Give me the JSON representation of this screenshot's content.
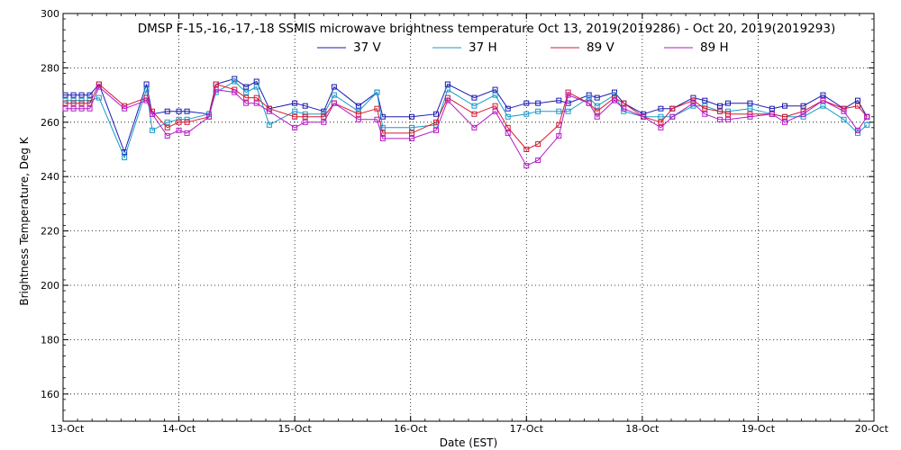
{
  "chart_data": {
    "type": "line",
    "title": "DMSP F-15,-16,-17,-18 SSMIS microwave brightness temperature Oct 13, 2019(2019286) - Oct 20, 2019(2019293)",
    "xlabel": "Date (EST)",
    "ylabel": "Brightness Temperature, Deg K",
    "xlim": [
      0,
      7
    ],
    "ylim": [
      150,
      300
    ],
    "yticks": [
      160,
      180,
      200,
      220,
      240,
      260,
      280,
      300
    ],
    "xticks": [
      {
        "x": 0,
        "label": "13-Oct"
      },
      {
        "x": 1,
        "label": "14-Oct"
      },
      {
        "x": 2,
        "label": "15-Oct"
      },
      {
        "x": 3,
        "label": "16-Oct"
      },
      {
        "x": 4,
        "label": "17-Oct"
      },
      {
        "x": 5,
        "label": "18-Oct"
      },
      {
        "x": 6,
        "label": "19-Oct"
      },
      {
        "x": 7,
        "label": "20-Oct"
      }
    ],
    "grid": true,
    "legend_position": "top-center",
    "x_unit_note": "x values in days since 13-Oct 00:00 EST",
    "series": [
      {
        "name": "37 V",
        "color": "#1a1ab4",
        "x": [
          0.02,
          0.09,
          0.16,
          0.23,
          0.31,
          0.53,
          0.72,
          0.77,
          0.9,
          1.0,
          1.07,
          1.26,
          1.32,
          1.48,
          1.58,
          1.67,
          1.78,
          2.0,
          2.09,
          2.25,
          2.34,
          2.55,
          2.71,
          2.76,
          3.01,
          3.22,
          3.32,
          3.55,
          3.73,
          3.84,
          4.0,
          4.1,
          4.28,
          4.36,
          4.54,
          4.61,
          4.76,
          4.84,
          5.01,
          5.16,
          5.26,
          5.44,
          5.54,
          5.67,
          5.74,
          5.93,
          6.12,
          6.23,
          6.39,
          6.56,
          6.74,
          6.86,
          6.94
        ],
        "y": [
          270,
          270,
          270,
          270,
          274,
          249,
          274,
          263,
          264,
          264,
          264,
          263,
          274,
          276,
          273,
          275,
          265,
          267,
          266,
          264,
          273,
          266,
          271,
          262,
          262,
          263,
          274,
          269,
          272,
          265,
          267,
          267,
          268,
          267,
          270,
          269,
          271,
          267,
          263,
          265,
          265,
          269,
          268,
          266,
          267,
          267,
          265,
          266,
          266,
          270,
          265,
          268,
          262
        ]
      },
      {
        "name": "37 H",
        "color": "#1a9ac8",
        "x": [
          0.02,
          0.09,
          0.16,
          0.23,
          0.31,
          0.53,
          0.72,
          0.77,
          0.9,
          1.0,
          1.07,
          1.26,
          1.32,
          1.48,
          1.58,
          1.67,
          1.78,
          2.0,
          2.09,
          2.25,
          2.34,
          2.55,
          2.71,
          2.76,
          3.01,
          3.22,
          3.32,
          3.55,
          3.73,
          3.84,
          4.0,
          4.1,
          4.28,
          4.36,
          4.54,
          4.61,
          4.76,
          4.84,
          5.01,
          5.16,
          5.26,
          5.44,
          5.54,
          5.67,
          5.74,
          5.93,
          6.12,
          6.23,
          6.39,
          6.56,
          6.74,
          6.86,
          6.94
        ],
        "y": [
          268,
          268,
          268,
          268,
          269,
          247,
          272,
          257,
          260,
          261,
          261,
          263,
          271,
          275,
          271,
          273,
          259,
          264,
          263,
          263,
          270,
          264,
          271,
          258,
          258,
          259,
          272,
          266,
          270,
          262,
          263,
          264,
          264,
          264,
          269,
          266,
          270,
          264,
          262,
          262,
          262,
          266,
          266,
          264,
          264,
          265,
          263,
          262,
          262,
          266,
          261,
          256,
          259
        ]
      },
      {
        "name": "89 V",
        "color": "#d41a32",
        "x": [
          0.02,
          0.09,
          0.16,
          0.23,
          0.31,
          0.53,
          0.72,
          0.77,
          0.9,
          1.0,
          1.07,
          1.26,
          1.32,
          1.48,
          1.58,
          1.67,
          1.78,
          2.0,
          2.09,
          2.25,
          2.34,
          2.55,
          2.71,
          2.76,
          3.01,
          3.22,
          3.32,
          3.55,
          3.73,
          3.84,
          4.0,
          4.1,
          4.28,
          4.36,
          4.54,
          4.61,
          4.76,
          4.84,
          5.01,
          5.16,
          5.26,
          5.44,
          5.54,
          5.67,
          5.74,
          5.93,
          6.12,
          6.23,
          6.39,
          6.56,
          6.74,
          6.86,
          6.94
        ],
        "y": [
          267,
          267,
          267,
          267,
          274,
          266,
          269,
          264,
          258,
          260,
          260,
          262,
          274,
          272,
          269,
          269,
          265,
          262,
          262,
          262,
          267,
          263,
          265,
          256,
          256,
          260,
          269,
          263,
          266,
          258,
          250,
          252,
          259,
          271,
          267,
          264,
          269,
          267,
          262,
          260,
          265,
          268,
          265,
          264,
          263,
          263,
          263,
          262,
          264,
          268,
          265,
          266,
          262
        ]
      },
      {
        "name": "89 H",
        "color": "#b41ac8",
        "x": [
          0.02,
          0.09,
          0.16,
          0.23,
          0.31,
          0.53,
          0.72,
          0.77,
          0.9,
          1.0,
          1.07,
          1.26,
          1.32,
          1.48,
          1.58,
          1.67,
          1.78,
          2.0,
          2.09,
          2.25,
          2.34,
          2.55,
          2.71,
          2.76,
          3.01,
          3.22,
          3.32,
          3.55,
          3.73,
          3.84,
          4.0,
          4.1,
          4.28,
          4.36,
          4.54,
          4.61,
          4.76,
          4.84,
          5.01,
          5.16,
          5.26,
          5.44,
          5.54,
          5.67,
          5.74,
          5.93,
          6.12,
          6.23,
          6.39,
          6.56,
          6.74,
          6.86,
          6.94
        ],
        "y": [
          265,
          265,
          265,
          265,
          273,
          265,
          268,
          263,
          255,
          257,
          256,
          262,
          272,
          271,
          267,
          267,
          264,
          258,
          260,
          260,
          267,
          261,
          261,
          254,
          254,
          257,
          268,
          258,
          264,
          256,
          244,
          246,
          255,
          270,
          267,
          262,
          268,
          265,
          262,
          258,
          262,
          267,
          263,
          261,
          261,
          262,
          263,
          260,
          263,
          268,
          264,
          257,
          262
        ]
      }
    ]
  }
}
